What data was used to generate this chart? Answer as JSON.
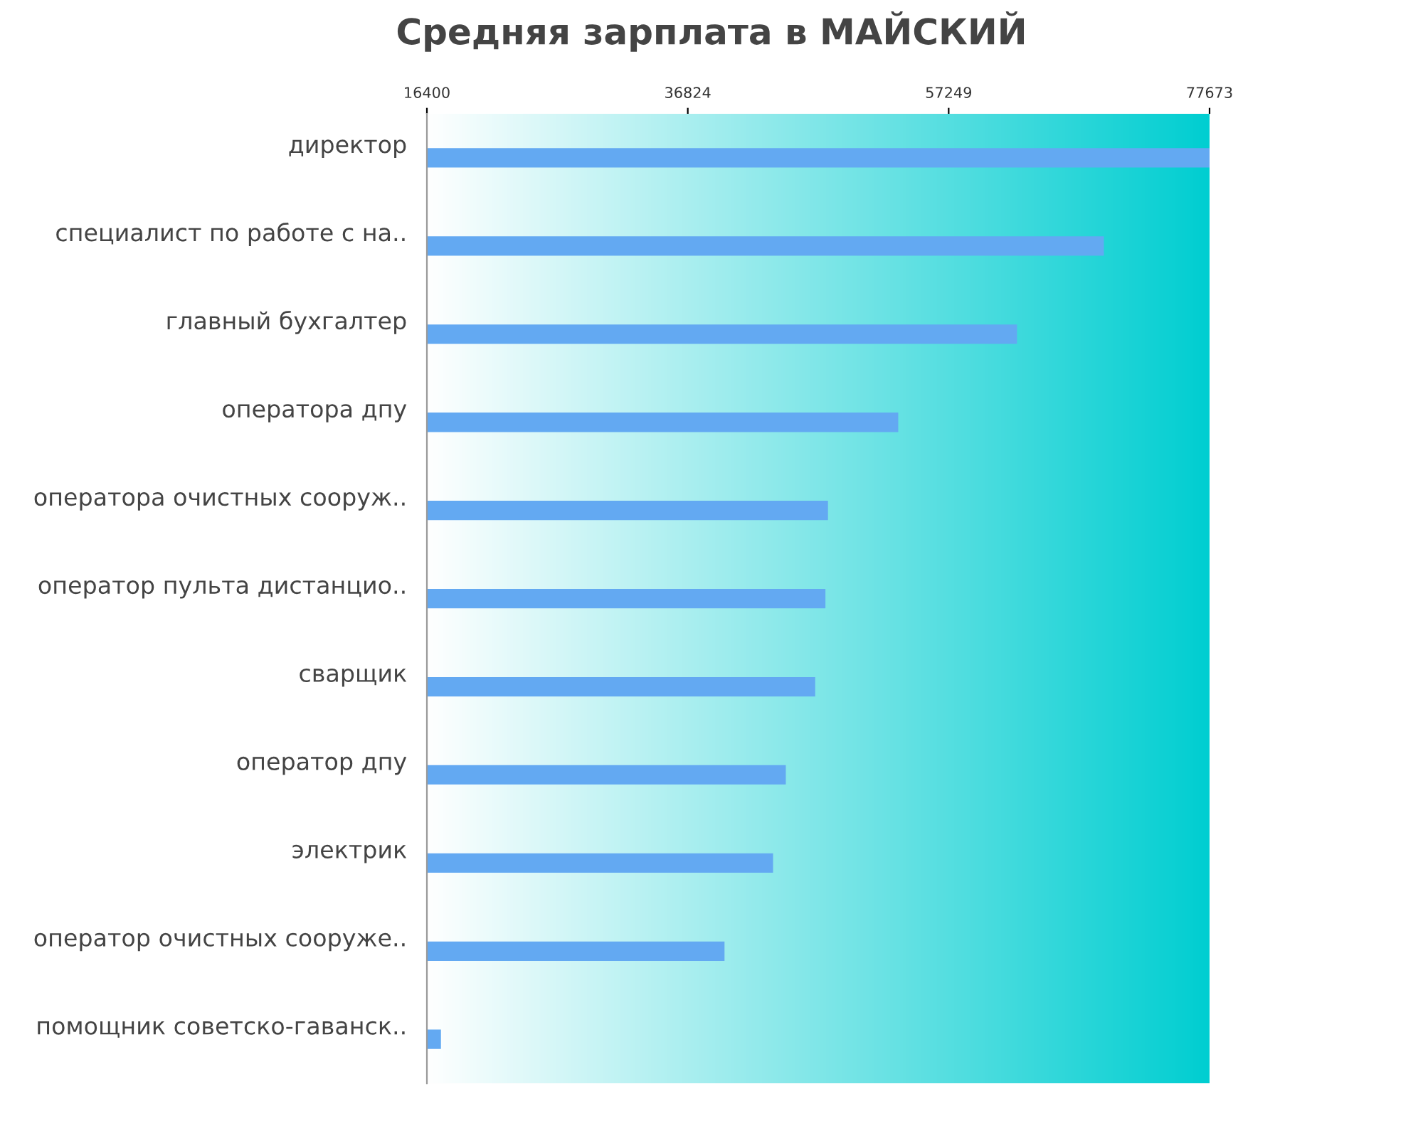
{
  "chart_data": {
    "type": "bar",
    "orientation": "horizontal",
    "title": "Средняя зарплата в МАЙСКИЙ",
    "categories": [
      "директор",
      "специалист по работе с на..",
      "главный бухгалтер",
      "оператора дпу",
      "оператора очистных сооруж..",
      "оператор пульта дистанцио..",
      "сварщик",
      "оператор дпу",
      "электрик",
      "оператор очистных сооруже..",
      "помощник советско-гаванск.."
    ],
    "values": [
      77673,
      69400,
      62600,
      53300,
      47800,
      47600,
      46800,
      44500,
      43500,
      39700,
      17500
    ],
    "color": "#63a9f2",
    "xlim": [
      16400,
      77673
    ],
    "xticks": [
      16400,
      36824,
      57249,
      77673
    ],
    "grid": false
  }
}
